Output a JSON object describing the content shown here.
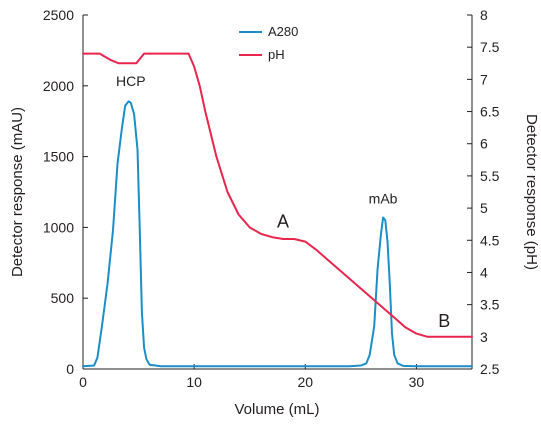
{
  "chart_data": {
    "type": "line",
    "title": "",
    "xlabel": "Volume (mL)",
    "ylabel_left": "Detector response (mAU)",
    "ylabel_right": "Detector response (pH)",
    "xlim": [
      0,
      35
    ],
    "ylim_left": [
      0,
      2500
    ],
    "ylim_right": [
      2.5,
      8
    ],
    "x_ticks": [
      "0",
      "10",
      "20",
      "30"
    ],
    "y_left_ticks": [
      "0",
      "500",
      "1000",
      "1500",
      "2000",
      "2500"
    ],
    "y_right_ticks": [
      "2.5",
      "3",
      "3.5",
      "4",
      "4.5",
      "5",
      "5.5",
      "6",
      "6.5",
      "7",
      "7.5",
      "8"
    ],
    "grid": false,
    "legend_position": "top-center",
    "series": [
      {
        "name": "A280",
        "axis": "left",
        "color": "#1b8ec6",
        "x": [
          0,
          1.0,
          1.3,
          1.7,
          2.2,
          2.7,
          3.1,
          3.5,
          3.8,
          4.1,
          4.3,
          4.6,
          4.9,
          5.1,
          5.3,
          5.5,
          5.7,
          6.0,
          7.0,
          10,
          15,
          20,
          24,
          25.0,
          25.5,
          25.8,
          26.2,
          26.5,
          26.8,
          27.0,
          27.2,
          27.4,
          27.6,
          27.8,
          28.0,
          28.3,
          28.8,
          30,
          35
        ],
        "y": [
          20,
          25,
          80,
          300,
          600,
          980,
          1450,
          1700,
          1860,
          1890,
          1880,
          1800,
          1550,
          1000,
          400,
          150,
          70,
          30,
          20,
          20,
          20,
          20,
          20,
          25,
          40,
          100,
          300,
          700,
          950,
          1070,
          1050,
          900,
          600,
          250,
          100,
          40,
          22,
          20,
          20
        ]
      },
      {
        "name": "pH",
        "axis": "right",
        "color": "#e8254c",
        "x": [
          0,
          1.5,
          2.5,
          3.2,
          4.0,
          4.8,
          5.5,
          7,
          9.5,
          10.0,
          10.5,
          11,
          12,
          13,
          14,
          15,
          16,
          17,
          18,
          19,
          20,
          21,
          22,
          24,
          26,
          28,
          29,
          30,
          31,
          32,
          33,
          35
        ],
        "y": [
          7.4,
          7.4,
          7.3,
          7.25,
          7.25,
          7.25,
          7.4,
          7.4,
          7.4,
          7.2,
          6.9,
          6.5,
          5.8,
          5.25,
          4.9,
          4.7,
          4.6,
          4.55,
          4.52,
          4.52,
          4.48,
          4.35,
          4.2,
          3.9,
          3.6,
          3.3,
          3.15,
          3.05,
          3.0,
          3.0,
          3.0,
          3.0
        ]
      }
    ],
    "annotations": [
      {
        "text": "HCP",
        "x": 4.3,
        "y": 2000,
        "axis": "left"
      },
      {
        "text": "mAb",
        "x": 27.0,
        "y": 1170,
        "axis": "left"
      },
      {
        "text": "A",
        "x": 18.0,
        "y": 4.7,
        "axis": "right"
      },
      {
        "text": "B",
        "x": 32.5,
        "y": 3.15,
        "axis": "right"
      }
    ]
  }
}
